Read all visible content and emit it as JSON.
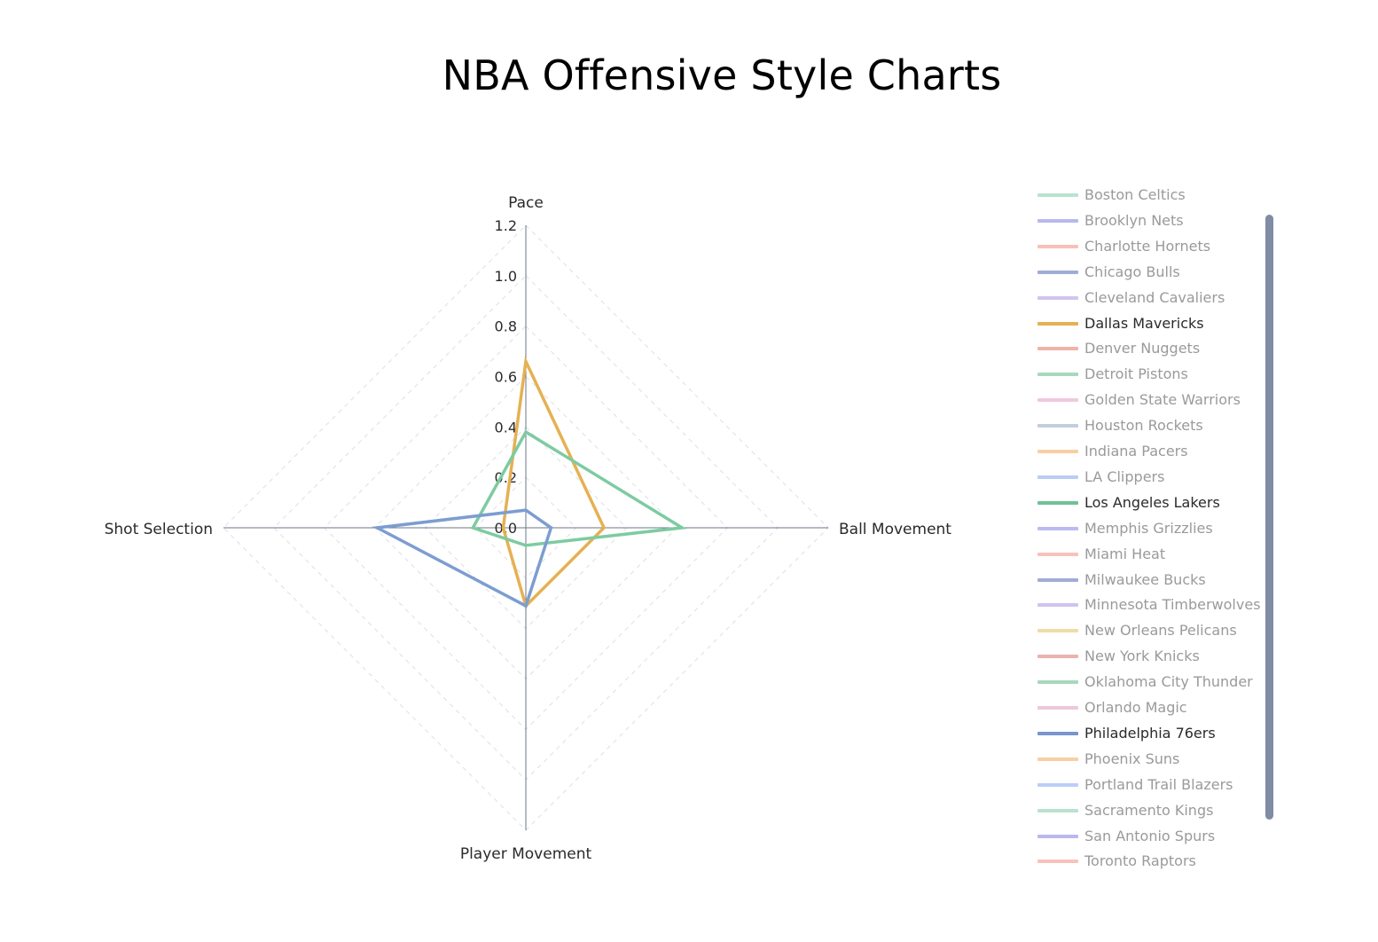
{
  "chart_data": {
    "type": "radar",
    "title": "NBA Offensive Style Charts",
    "axes": [
      "Pace",
      "Ball Movement",
      "Player Movement",
      "Shot Selection"
    ],
    "radial_range": [
      0,
      1.2
    ],
    "radial_ticks": [
      "0.0",
      "0.2",
      "0.4",
      "0.6",
      "0.8",
      "1.0",
      "1.2"
    ],
    "visible_series": [
      {
        "name": "Dallas Mavericks",
        "color": "#e5b153",
        "values": [
          0.66,
          0.31,
          0.31,
          0.09
        ]
      },
      {
        "name": "Los Angeles Lakers",
        "color": "#7dcba1",
        "values": [
          0.38,
          0.62,
          0.07,
          0.21
        ]
      },
      {
        "name": "Philadelphia 76ers",
        "color": "#7c9dd0",
        "values": [
          0.07,
          0.1,
          0.31,
          0.59
        ]
      }
    ],
    "legend": [
      {
        "name": "Boston Celtics",
        "color": "#b8e3cf",
        "active": false
      },
      {
        "name": "Brooklyn Nets",
        "color": "#b8b8ef",
        "active": false
      },
      {
        "name": "Charlotte Hornets",
        "color": "#f8c0b8",
        "active": false
      },
      {
        "name": "Chicago Bulls",
        "color": "#a0acd6",
        "active": false
      },
      {
        "name": "Cleveland Cavaliers",
        "color": "#d2c3ee",
        "active": false
      },
      {
        "name": "Dallas Mavericks",
        "color": "#e5b153",
        "active": true
      },
      {
        "name": "Denver Nuggets",
        "color": "#f0b3a8",
        "active": false
      },
      {
        "name": "Detroit Pistons",
        "color": "#a8d8bd",
        "active": false
      },
      {
        "name": "Golden State Warriors",
        "color": "#f0c8df",
        "active": false
      },
      {
        "name": "Houston Rockets",
        "color": "#c2cde0",
        "active": false
      },
      {
        "name": "Indiana Pacers",
        "color": "#f8cfa3",
        "active": false
      },
      {
        "name": "LA Clippers",
        "color": "#bbcdf5",
        "active": false
      },
      {
        "name": "Los Angeles Lakers",
        "color": "#6fc197",
        "active": true
      },
      {
        "name": "Memphis Grizzlies",
        "color": "#babbf0",
        "active": false
      },
      {
        "name": "Miami Heat",
        "color": "#f8c1bb",
        "active": false
      },
      {
        "name": "Milwaukee Bucks",
        "color": "#a0acd6",
        "active": false
      },
      {
        "name": "Minnesota Timberwolves",
        "color": "#d0c3ef",
        "active": false
      },
      {
        "name": "New Orleans Pelicans",
        "color": "#efdca8",
        "active": false
      },
      {
        "name": "New York Knicks",
        "color": "#e8b4ad",
        "active": false
      },
      {
        "name": "Oklahoma City Thunder",
        "color": "#a9d8bc",
        "active": false
      },
      {
        "name": "Orlando Magic",
        "color": "#ecc8dc",
        "active": false
      },
      {
        "name": "Philadelphia 76ers",
        "color": "#7895cc",
        "active": true
      },
      {
        "name": "Phoenix Suns",
        "color": "#f8cea5",
        "active": false
      },
      {
        "name": "Portland Trail Blazers",
        "color": "#bbcef7",
        "active": false
      },
      {
        "name": "Sacramento Kings",
        "color": "#b9e3cf",
        "active": false
      },
      {
        "name": "San Antonio Spurs",
        "color": "#b9b8f0",
        "active": false
      },
      {
        "name": "Toronto Raptors",
        "color": "#f8c2bc",
        "active": false
      }
    ]
  }
}
